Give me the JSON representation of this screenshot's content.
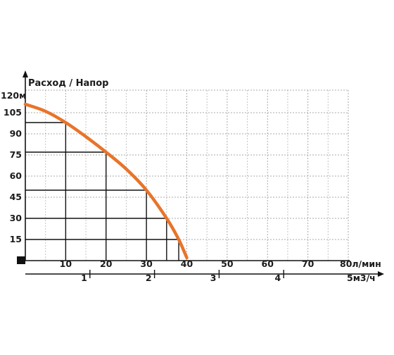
{
  "chart_data": {
    "type": "line",
    "title": "Расход / Напор",
    "y_axis": {
      "top_label": "120м",
      "ticks": [
        15,
        30,
        45,
        60,
        75,
        90,
        105
      ],
      "tick_labels": [
        "15",
        "30",
        "45",
        "60",
        "75",
        "90",
        "105"
      ],
      "ylim": [
        0,
        120
      ]
    },
    "x_axis": {
      "ticks": [
        10,
        20,
        30,
        40,
        50,
        60,
        70
      ],
      "tick_labels": [
        "10",
        "20",
        "30",
        "40",
        "50",
        "60",
        "70"
      ],
      "end_label": "80л/мин",
      "xlim": [
        0,
        80
      ]
    },
    "x_axis_secondary": {
      "ticks": [
        1,
        2,
        3,
        4
      ],
      "tick_labels": [
        "1",
        "2",
        "3",
        "4"
      ],
      "end_label": "5м3/ч",
      "xlim": [
        0,
        5
      ]
    },
    "series": [
      {
        "color": "#e8742a",
        "x": [
          0,
          5,
          10,
          15,
          20,
          25,
          30,
          35,
          38,
          40
        ],
        "y": [
          111,
          106,
          98,
          88,
          77,
          65,
          50,
          30,
          15,
          2
        ]
      }
    ],
    "reference_points": [
      {
        "x": 10,
        "y": 98
      },
      {
        "x": 20,
        "y": 77
      },
      {
        "x": 30,
        "y": 50
      },
      {
        "x": 35,
        "y": 30
      },
      {
        "x": 38,
        "y": 15
      }
    ],
    "grid": true,
    "grid_style": "dotted"
  }
}
